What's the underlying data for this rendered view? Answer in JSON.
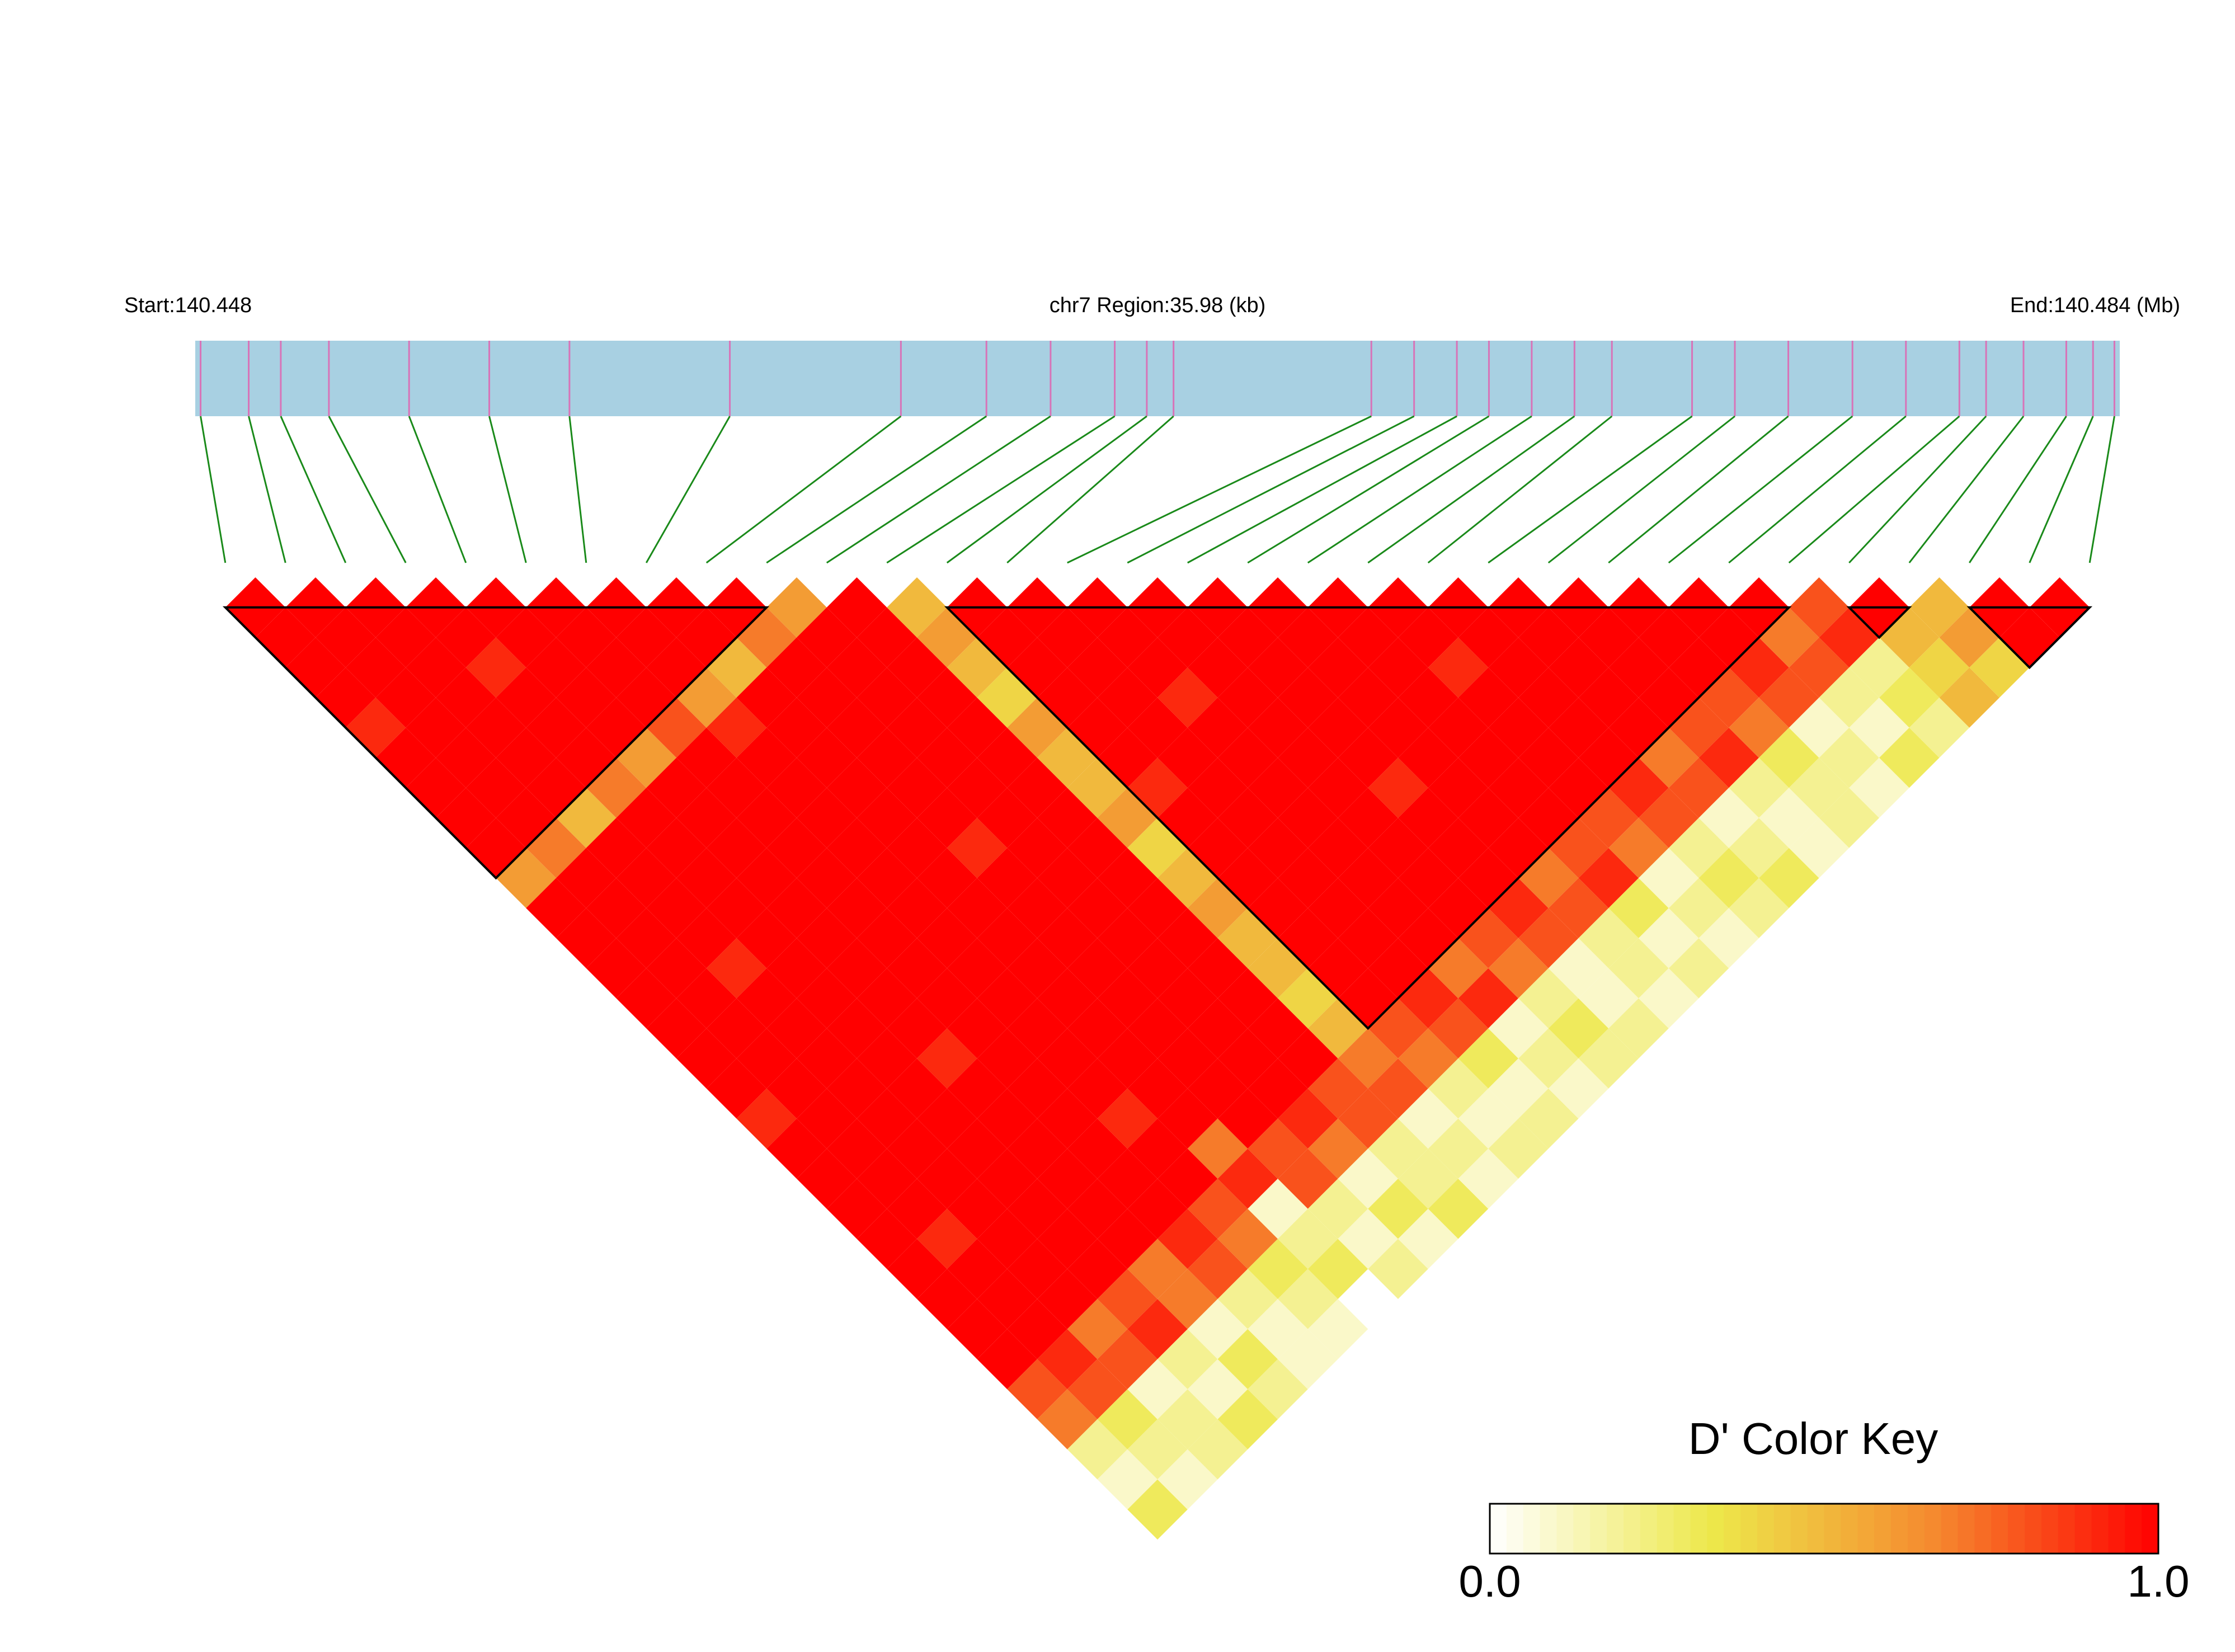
{
  "chart_data": {
    "type": "ld-heatmap",
    "start_label": "Start:140.448",
    "region_label": "chr7 Region:35.98 (kb)",
    "end_label": "End:140.484 (Mb)",
    "xlim": [
      140.448,
      140.484
    ],
    "snp_positions": [
      140.4481,
      140.449,
      140.4496,
      140.4505,
      140.452,
      140.4535,
      140.455,
      140.458,
      140.4612,
      140.4628,
      140.464,
      140.4652,
      140.4658,
      140.4663,
      140.47,
      140.4708,
      140.4716,
      140.4722,
      140.473,
      140.4738,
      140.4745,
      140.476,
      140.4768,
      140.4778,
      140.479,
      140.48,
      140.481,
      140.4815,
      140.4822,
      140.483,
      140.4835,
      140.4839
    ],
    "dprime": [
      [
        1,
        1,
        1,
        1,
        0.9,
        1,
        1,
        1,
        1,
        0.6,
        1,
        1,
        1,
        1,
        1,
        1,
        1,
        0.9,
        1,
        1,
        1,
        1,
        1,
        1,
        1,
        1,
        0.8,
        0.7,
        0.2,
        0.1,
        0.3
      ],
      [
        1,
        1,
        1,
        1,
        1,
        1,
        1,
        1,
        0.7,
        1,
        1,
        1,
        1,
        1,
        1,
        1,
        1,
        1,
        1,
        1,
        1,
        0.9,
        1,
        1,
        1,
        0.9,
        0.8,
        0.3,
        0.2,
        0.1
      ],
      [
        1,
        1,
        1,
        1,
        1,
        1,
        1,
        0.5,
        1,
        1,
        1,
        1,
        0.9,
        1,
        1,
        1,
        1,
        1,
        1,
        1,
        1,
        1,
        1,
        1,
        0.7,
        0.8,
        0.1,
        0.2,
        0.2
      ],
      [
        1,
        1,
        0.9,
        1,
        1,
        1,
        0.7,
        1,
        1,
        1,
        1,
        1,
        1,
        1,
        1,
        1,
        1,
        1,
        1,
        1,
        1,
        1,
        1,
        0.8,
        0.9,
        0.2,
        0.1,
        0.3
      ],
      [
        1,
        1,
        1,
        1,
        1,
        0.6,
        1,
        1,
        1,
        1,
        1,
        1,
        1,
        1,
        1,
        0.9,
        1,
        1,
        1,
        1,
        1,
        1,
        0.7,
        0.7,
        0.1,
        0.3,
        0.2
      ],
      [
        1,
        1,
        1,
        1,
        0.8,
        1,
        1,
        1,
        1,
        1,
        1,
        1,
        1,
        1,
        1,
        1,
        1,
        1,
        1,
        1,
        1,
        0.9,
        0.8,
        0.2,
        0.1,
        0.1
      ],
      [
        1,
        1,
        1,
        0.6,
        0.9,
        1,
        1,
        1,
        1,
        1,
        1,
        1,
        1,
        1,
        1,
        1,
        1,
        0.9,
        1,
        1,
        0.8,
        0.7,
        0.3,
        0.2,
        0.1
      ],
      [
        1,
        1,
        0.5,
        1,
        1,
        1,
        1,
        1,
        1,
        1,
        1,
        1,
        1,
        1,
        1,
        1,
        1,
        1,
        0.7,
        0.9,
        0.1,
        0.2,
        0.3
      ],
      [
        1,
        0.7,
        1,
        1,
        1,
        1,
        1,
        1,
        0.9,
        1,
        1,
        1,
        1,
        1,
        1,
        1,
        1,
        1,
        0.8,
        0.8,
        0.2,
        0.1,
        0.2
      ],
      [
        0.6,
        1,
        1,
        1,
        1,
        1,
        1,
        1,
        1,
        1,
        1,
        1,
        1,
        1,
        1,
        1,
        1,
        0.9,
        0.7,
        0.1,
        0.3,
        0.1
      ],
      [
        1,
        1,
        1,
        1,
        1,
        1,
        1,
        1,
        1,
        1,
        1,
        1,
        1,
        1,
        1,
        1,
        0.8,
        0.8,
        0.2,
        0.2,
        0.3
      ],
      [
        0.5,
        0.6,
        0.5,
        0.4,
        0.6,
        0.5,
        0.5,
        0.6,
        0.4,
        0.5,
        0.6,
        0.5,
        0.5,
        0.4,
        0.5,
        0.7,
        0.8,
        0.1,
        0.2,
        0.1
      ],
      [
        1,
        1,
        1,
        1,
        1,
        1,
        0.9,
        1,
        1,
        1,
        1,
        1,
        1,
        1,
        0.8,
        0.7,
        0.2,
        0.1,
        0.2
      ],
      [
        1,
        1,
        1,
        1,
        1,
        1,
        1,
        1,
        1,
        1,
        1,
        1,
        1,
        0.9,
        0.8,
        0.3,
        0.1,
        0.2
      ],
      [
        1,
        1,
        1,
        0.9,
        1,
        1,
        1,
        1,
        1,
        1,
        1,
        1,
        0.7,
        0.9,
        0.1,
        0.2,
        0.1
      ],
      [
        1,
        1,
        1,
        1,
        1,
        1,
        1,
        1,
        1,
        1,
        1,
        0.8,
        0.7,
        0.2,
        0.3,
        0.2
      ],
      [
        1,
        1,
        1,
        1,
        1,
        1,
        0.9,
        1,
        1,
        1,
        0.9,
        0.8,
        0.1,
        0.1,
        0.2
      ],
      [
        1,
        1,
        1,
        1,
        1,
        1,
        1,
        1,
        1,
        0.7,
        0.8,
        0.2,
        0.2,
        0.1
      ],
      [
        1,
        1,
        1,
        1,
        1,
        1,
        1,
        1,
        0.8,
        0.9,
        0.3,
        0.1,
        0.2
      ],
      [
        1,
        1,
        0.9,
        1,
        1,
        1,
        1,
        0.8,
        0.7,
        0.1,
        0.2,
        0.1
      ],
      [
        1,
        1,
        1,
        1,
        1,
        1,
        0.9,
        0.8,
        0.2,
        0.3,
        0.2
      ],
      [
        1,
        1,
        1,
        1,
        1,
        0.7,
        0.8,
        0.1,
        0.2,
        0.3
      ],
      [
        1,
        1,
        1,
        1,
        0.8,
        0.9,
        0.2,
        0.1,
        0.1
      ],
      [
        1,
        1,
        1,
        0.8,
        0.7,
        0.3,
        0.2,
        0.2
      ],
      [
        1,
        1,
        0.9,
        0.8,
        0.1,
        0.2,
        0.1
      ],
      [
        1,
        0.7,
        0.8,
        0.2,
        0.1,
        0.3
      ],
      [
        0.8,
        0.9,
        0.2,
        0.3,
        0.2
      ],
      [
        1,
        0.5,
        0.4,
        0.5
      ],
      [
        0.5,
        0.6,
        0.4
      ],
      [
        1,
        1
      ],
      [
        1
      ]
    ],
    "blocks": [
      [
        0,
        9
      ],
      [
        12,
        26
      ],
      [
        27,
        28
      ],
      [
        29,
        31
      ]
    ],
    "color_scale": [
      "#ffffff",
      "#ede84a",
      "#f5892f",
      "#ff0000"
    ],
    "color_key": {
      "title": "D' Color Key",
      "clim": [
        0,
        1
      ],
      "ticks": [
        {
          "value": 0,
          "label": "0.0"
        },
        {
          "value": 1,
          "label": "1.0"
        }
      ]
    }
  }
}
